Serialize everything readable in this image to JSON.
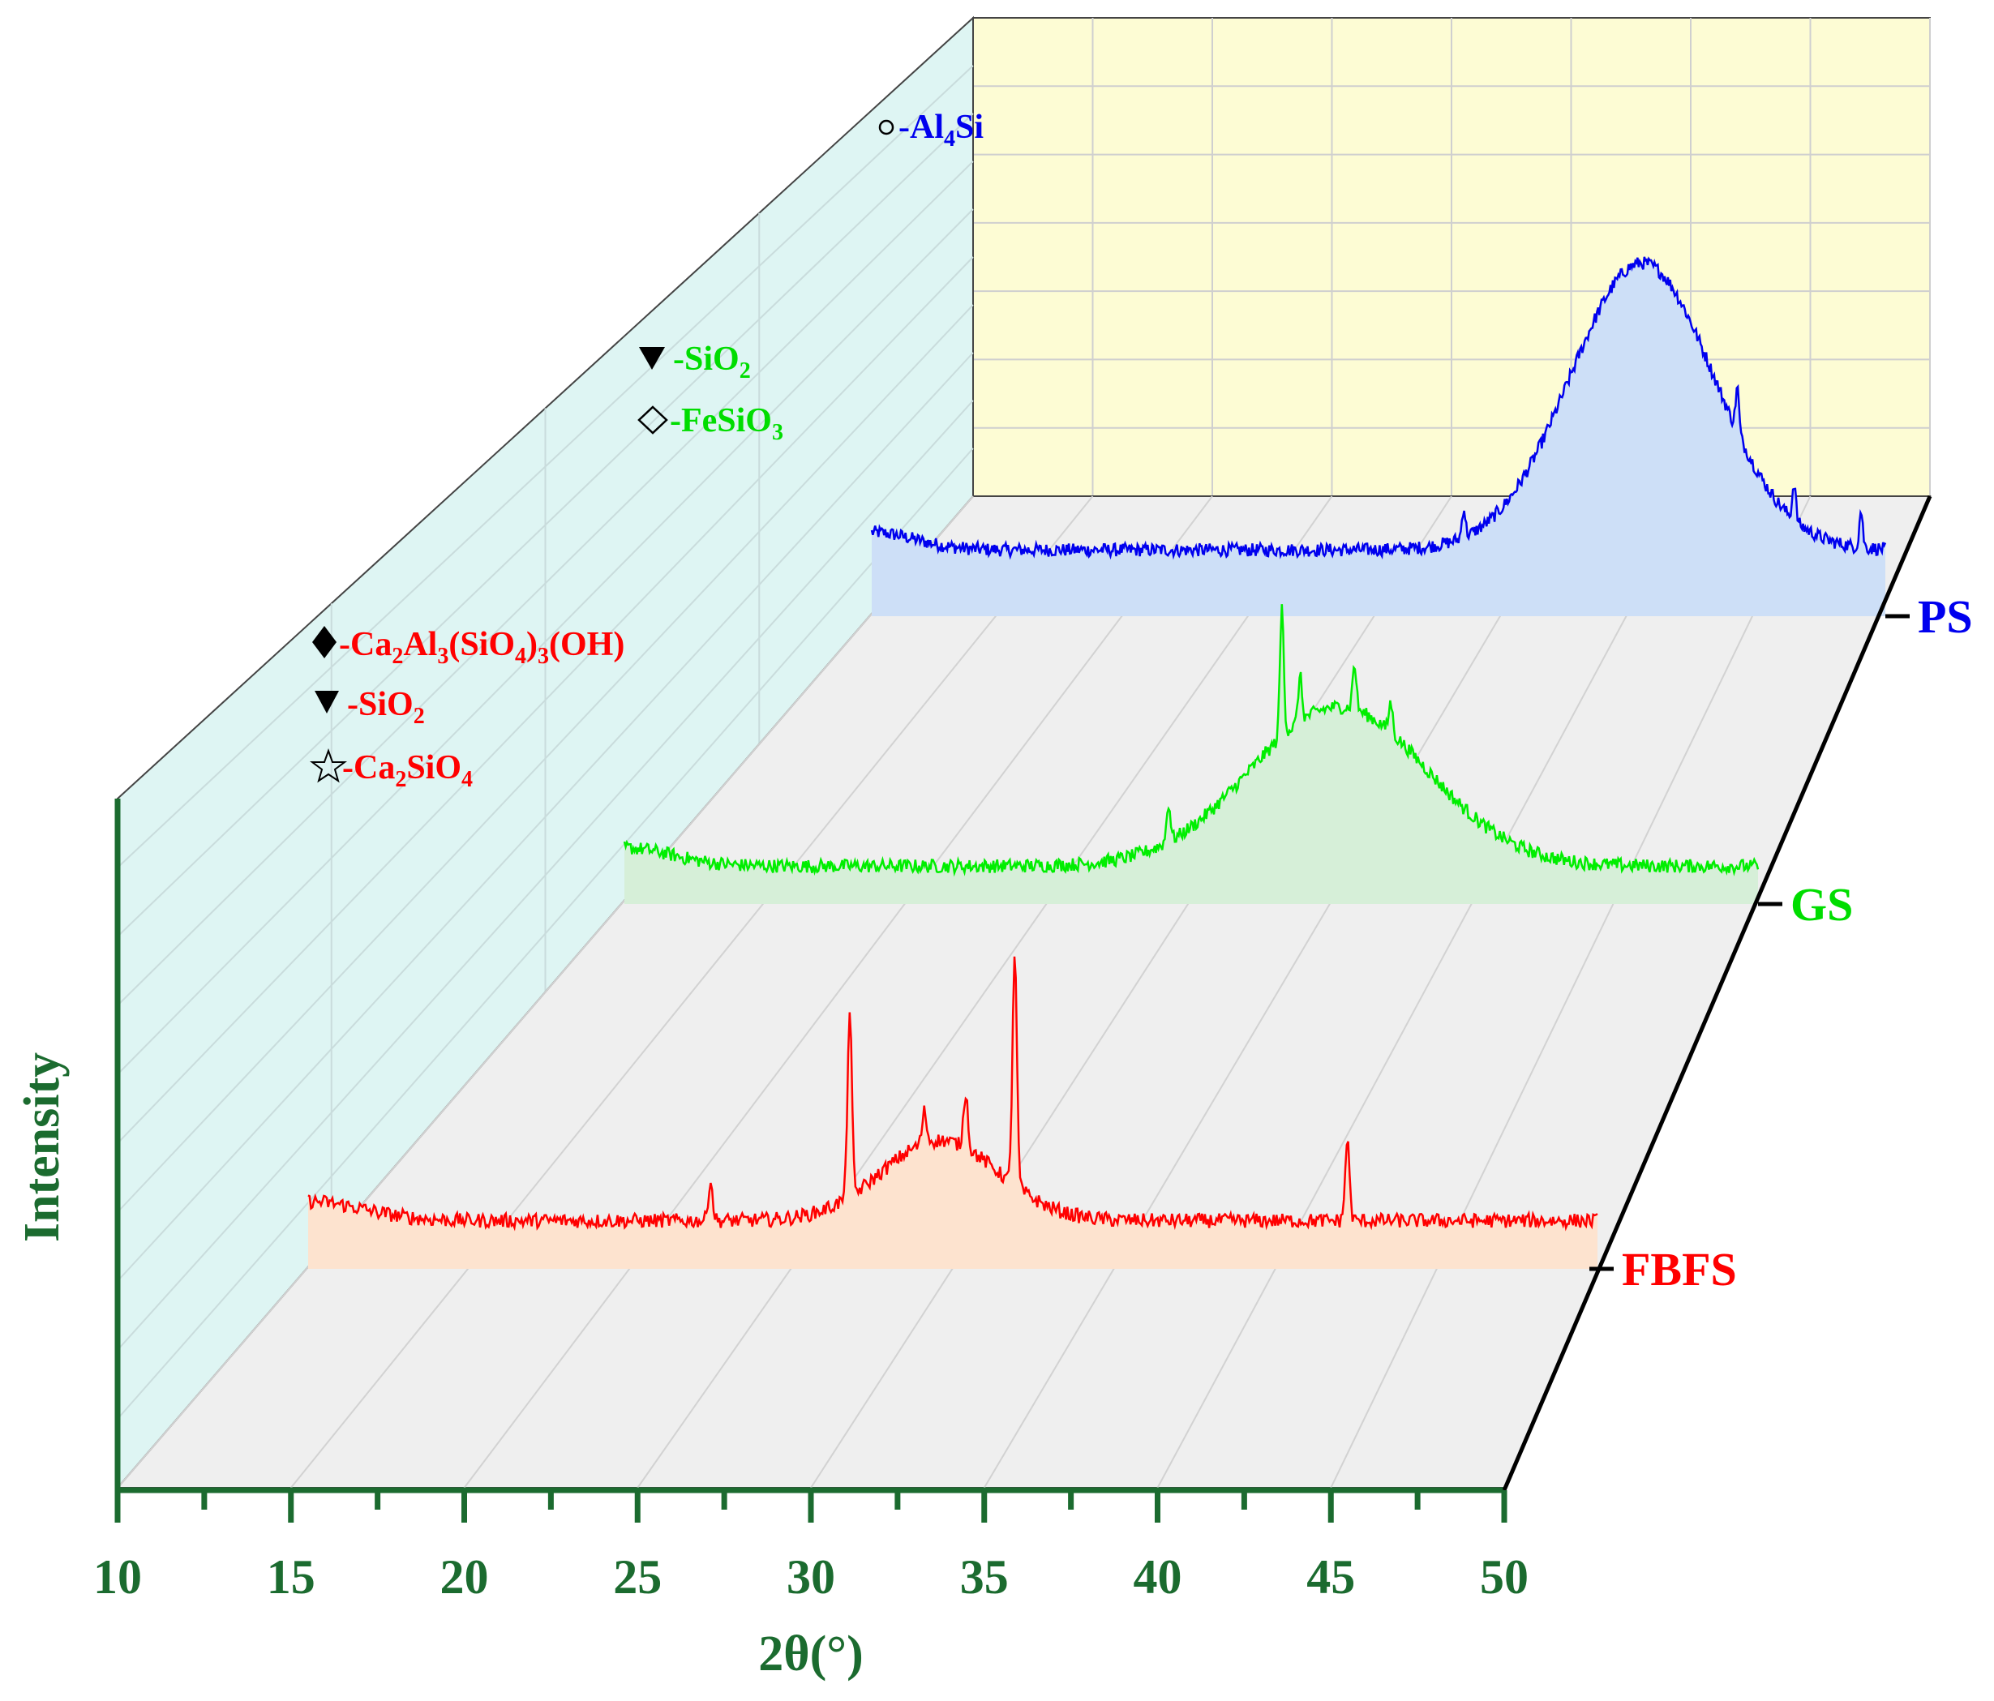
{
  "chart_data": {
    "type": "line",
    "style": "3d-waterfall",
    "xlabel": "2θ(°)",
    "ylabel": "Intensity",
    "xlim": [
      10,
      50
    ],
    "xticks": [
      10,
      15,
      20,
      25,
      30,
      35,
      40,
      45,
      50
    ],
    "axis_color": "#1b6b2f",
    "grid": true,
    "series": [
      {
        "name": "FBFS",
        "color": "#ff0000",
        "fill": "#fde3cf",
        "baseline": 0.3,
        "broad_hump": {
          "center": 34.5,
          "width": 3.2,
          "height": 0.5
        },
        "sharp_peaks": [
          {
            "x": 25.6,
            "height": 0.25
          },
          {
            "x": 31.0,
            "height": 1.15
          },
          {
            "x": 33.9,
            "height": 0.2
          },
          {
            "x": 35.5,
            "height": 0.35
          },
          {
            "x": 37.4,
            "height": 1.45
          },
          {
            "x": 50.3,
            "height": 0.5
          }
        ],
        "legend": [
          {
            "symbol": "diamond-filled",
            "prefix": "-Ca",
            "formula": "-Ca2Al3(SiO4)3(OH)"
          },
          {
            "symbol": "triangle-filled",
            "formula": "-SiO2"
          },
          {
            "symbol": "star-open",
            "formula": "-Ca2SiO4"
          }
        ]
      },
      {
        "name": "GS",
        "color": "#00ee00",
        "fill": "#d6efd8",
        "baseline": 0.25,
        "broad_hump": {
          "center": 41.5,
          "width": 5.5,
          "height": 1.05
        },
        "sharp_peaks": [
          {
            "x": 34.0,
            "height": 0.25
          },
          {
            "x": 39.0,
            "height": 0.85
          },
          {
            "x": 39.8,
            "height": 0.3
          },
          {
            "x": 42.2,
            "height": 0.3
          },
          {
            "x": 43.8,
            "height": 0.2
          }
        ],
        "legend": [
          {
            "symbol": "triangle-filled",
            "formula": "-SiO2"
          },
          {
            "symbol": "diamond-open",
            "formula": "-FeSiO3"
          }
        ]
      },
      {
        "name": "PS",
        "color": "#0000ee",
        "fill": "#cddff7",
        "baseline": 0.45,
        "broad_hump": {
          "center": 48.0,
          "width": 5.0,
          "height": 1.95
        },
        "sharp_peaks": [
          {
            "x": 39.2,
            "height": 0.2
          },
          {
            "x": 52.7,
            "height": 0.3
          },
          {
            "x": 55.5,
            "height": 0.25
          },
          {
            "x": 58.8,
            "height": 0.25
          }
        ],
        "legend": [
          {
            "symbol": "circle-open",
            "formula": "-Al4Si"
          }
        ]
      }
    ],
    "legend_groups": {
      "FBFS": {
        "line1": {
          "main": "-Ca",
          "sub1": "2",
          "mid1": "Al",
          "sub2": "3",
          "mid2": "(SiO",
          "sub3": "4",
          "mid3": ")",
          "sub4": "3",
          "end": "(OH)"
        },
        "line2": {
          "main": "-SiO",
          "sub": "2"
        },
        "line3": {
          "main": "-Ca",
          "sub1": "2",
          "mid": "SiO",
          "sub2": "4"
        }
      },
      "GS": {
        "line1": {
          "main": "-SiO",
          "sub": "2"
        },
        "line2": {
          "main": "-FeSiO",
          "sub": "3"
        }
      },
      "PS": {
        "line1": {
          "main": "-Al",
          "sub": "4",
          "end": "Si"
        }
      }
    }
  }
}
